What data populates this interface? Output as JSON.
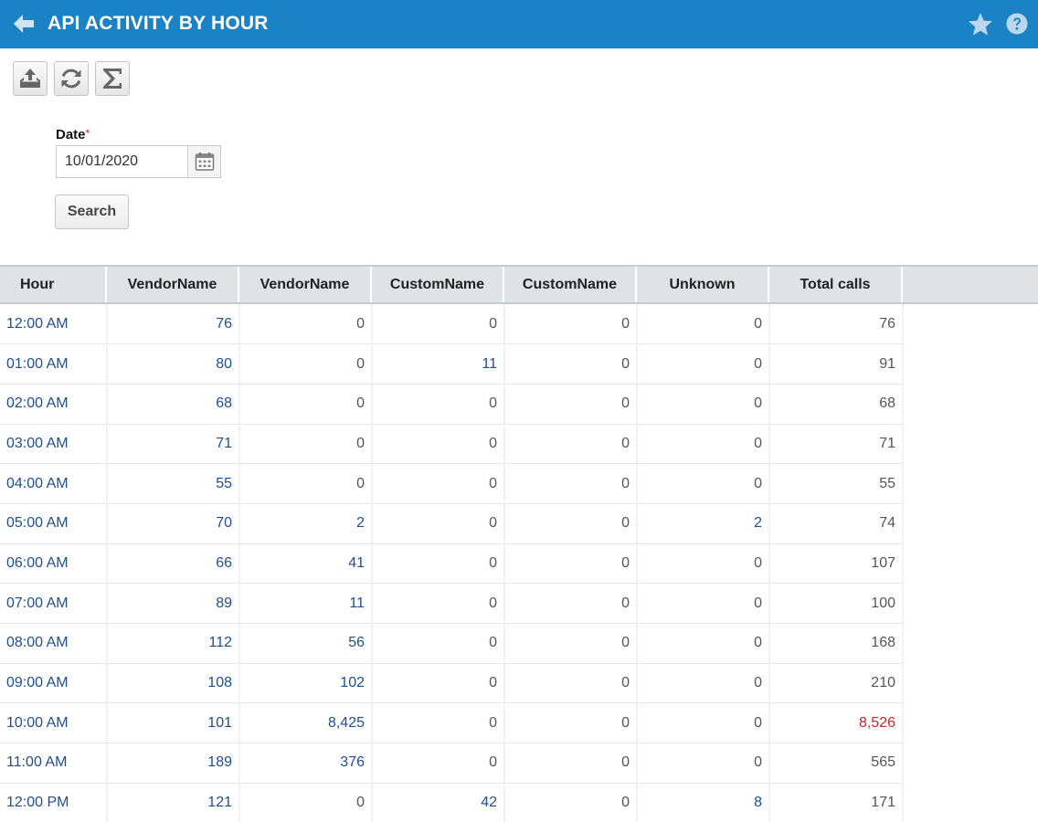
{
  "header": {
    "title": "API ACTIVITY BY HOUR"
  },
  "toolbar": {
    "buttons": [
      {
        "icon": "export-icon"
      },
      {
        "icon": "refresh-icon"
      },
      {
        "icon": "sigma-icon"
      }
    ]
  },
  "filters": {
    "date_label": "Date",
    "required_mark": "*",
    "date_value": "10/01/2020",
    "search_label": "Search"
  },
  "colors": {
    "header_bg": "#1c82c6",
    "link": "#1f4e8c",
    "alert": "#c62828"
  },
  "table": {
    "columns": [
      "Hour",
      "VendorName",
      "VendorName",
      "CustomName",
      "CustomName",
      "Unknown",
      "Total calls"
    ],
    "rows": [
      {
        "hour": "12:00 AM",
        "v1": "76",
        "v2": "0",
        "c1": "0",
        "c2": "0",
        "unknown": "0",
        "total": "76"
      },
      {
        "hour": "01:00 AM",
        "v1": "80",
        "v2": "0",
        "c1": "11",
        "c2": "0",
        "unknown": "0",
        "total": "91"
      },
      {
        "hour": "02:00 AM",
        "v1": "68",
        "v2": "0",
        "c1": "0",
        "c2": "0",
        "unknown": "0",
        "total": "68"
      },
      {
        "hour": "03:00 AM",
        "v1": "71",
        "v2": "0",
        "c1": "0",
        "c2": "0",
        "unknown": "0",
        "total": "71"
      },
      {
        "hour": "04:00 AM",
        "v1": "55",
        "v2": "0",
        "c1": "0",
        "c2": "0",
        "unknown": "0",
        "total": "55"
      },
      {
        "hour": "05:00 AM",
        "v1": "70",
        "v2": "2",
        "c1": "0",
        "c2": "0",
        "unknown": "2",
        "total": "74"
      },
      {
        "hour": "06:00 AM",
        "v1": "66",
        "v2": "41",
        "c1": "0",
        "c2": "0",
        "unknown": "0",
        "total": "107"
      },
      {
        "hour": "07:00 AM",
        "v1": "89",
        "v2": "11",
        "c1": "0",
        "c2": "0",
        "unknown": "0",
        "total": "100"
      },
      {
        "hour": "08:00 AM",
        "v1": "112",
        "v2": "56",
        "c1": "0",
        "c2": "0",
        "unknown": "0",
        "total": "168"
      },
      {
        "hour": "09:00 AM",
        "v1": "108",
        "v2": "102",
        "c1": "0",
        "c2": "0",
        "unknown": "0",
        "total": "210"
      },
      {
        "hour": "10:00 AM",
        "v1": "101",
        "v2": "8,425",
        "c1": "0",
        "c2": "0",
        "unknown": "0",
        "total": "8,526",
        "total_alert": true
      },
      {
        "hour": "11:00 AM",
        "v1": "189",
        "v2": "376",
        "c1": "0",
        "c2": "0",
        "unknown": "0",
        "total": "565"
      },
      {
        "hour": "12:00 PM",
        "v1": "121",
        "v2": "0",
        "c1": "42",
        "c2": "0",
        "unknown": "8",
        "total": "171"
      }
    ]
  }
}
